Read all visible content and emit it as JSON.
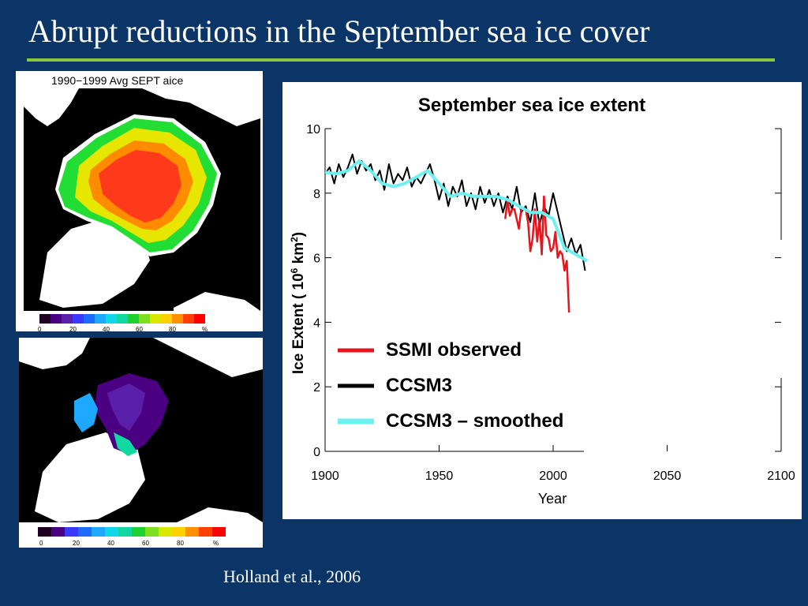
{
  "slide": {
    "title": "Abrupt reductions in the September sea ice cover",
    "caption": "Holland et al., 2006"
  },
  "map_top": {
    "label": "1990−1999 Avg SEPT aice",
    "colorbar_ticks": [
      "0",
      "20",
      "40",
      "60",
      "80",
      "%"
    ]
  },
  "map_bottom": {
    "colorbar_ticks": [
      "0",
      "20",
      "40",
      "60",
      "80",
      "%"
    ]
  },
  "colors": {
    "background": "#0a3566",
    "rule": "#8cc63f",
    "observed": "#e8141c",
    "ccsm3": "#000000",
    "smoothed": "#6ef0f0"
  },
  "chart_data": {
    "type": "line",
    "title": "September sea ice extent",
    "xlabel": "Year",
    "ylabel": "Ice Extent ( 10^6 km^2 )",
    "xlim": [
      1900,
      2100
    ],
    "ylim": [
      0,
      10
    ],
    "xticks": [
      "1900",
      "1950",
      "2000",
      "2050",
      "2100"
    ],
    "yticks": [
      "0",
      "2",
      "4",
      "6",
      "8",
      "10"
    ],
    "legend_position": "lower-left",
    "series": [
      {
        "name": "SSMI observed",
        "color": "#e8141c",
        "x": [
          1979,
          1980,
          1981,
          1982,
          1983,
          1984,
          1985,
          1986,
          1987,
          1988,
          1989,
          1990,
          1991,
          1992,
          1993,
          1994,
          1995,
          1996,
          1997,
          1998,
          1999,
          2000,
          2001,
          2002,
          2003,
          2004,
          2005,
          2006,
          2007
        ],
        "y": [
          7.2,
          7.8,
          7.3,
          7.5,
          7.5,
          7.2,
          6.9,
          7.5,
          7.5,
          7.5,
          7.1,
          6.2,
          6.6,
          7.5,
          6.5,
          7.2,
          6.1,
          7.9,
          6.7,
          6.6,
          6.2,
          6.3,
          6.8,
          6.0,
          6.2,
          6.1,
          5.6,
          5.9,
          4.3
        ]
      },
      {
        "name": "CCSM3",
        "color": "#000000",
        "x": [
          1900,
          1902,
          1904,
          1906,
          1908,
          1910,
          1912,
          1914,
          1916,
          1918,
          1920,
          1922,
          1924,
          1926,
          1928,
          1930,
          1932,
          1934,
          1936,
          1938,
          1940,
          1942,
          1944,
          1946,
          1948,
          1950,
          1952,
          1954,
          1956,
          1958,
          1960,
          1962,
          1964,
          1966,
          1968,
          1970,
          1972,
          1974,
          1976,
          1978,
          1980,
          1982,
          1984,
          1986,
          1988,
          1990,
          1992,
          1994,
          1996,
          1998,
          2000,
          2002,
          2004,
          2006,
          2008,
          2010,
          2012,
          2014
        ],
        "y": [
          8.6,
          8.8,
          8.3,
          8.9,
          8.5,
          8.8,
          9.2,
          8.6,
          9.0,
          8.7,
          8.9,
          8.4,
          8.7,
          8.1,
          8.9,
          8.3,
          8.6,
          8.4,
          8.8,
          8.2,
          8.5,
          8.3,
          8.6,
          8.9,
          8.4,
          7.8,
          8.3,
          7.6,
          8.2,
          7.9,
          8.4,
          7.6,
          8.0,
          7.5,
          8.2,
          7.7,
          8.1,
          7.6,
          8.0,
          7.4,
          7.9,
          7.5,
          8.2,
          7.4,
          7.6,
          7.1,
          8.0,
          7.0,
          7.6,
          7.3,
          8.0,
          7.4,
          6.8,
          6.2,
          6.6,
          6.1,
          6.4,
          5.6
        ]
      },
      {
        "name": "CCSM3 – smoothed",
        "color": "#6ef0f0",
        "x": [
          1900,
          1905,
          1910,
          1915,
          1920,
          1925,
          1930,
          1935,
          1940,
          1945,
          1950,
          1955,
          1960,
          1965,
          1970,
          1975,
          1980,
          1985,
          1990,
          1995,
          2000,
          2005,
          2010,
          2015
        ],
        "y": [
          8.65,
          8.6,
          8.7,
          9.0,
          8.7,
          8.3,
          8.2,
          8.3,
          8.5,
          8.7,
          8.3,
          7.9,
          8.0,
          7.9,
          7.9,
          7.9,
          7.8,
          7.6,
          7.4,
          7.4,
          7.2,
          6.3,
          6.1,
          5.9
        ]
      }
    ]
  }
}
